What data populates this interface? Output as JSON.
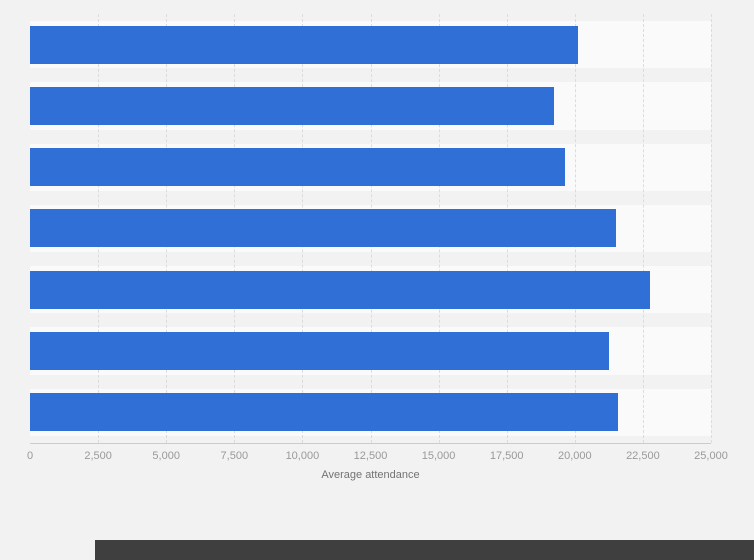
{
  "page": {
    "background": "#f2f2f2"
  },
  "chart_data": {
    "type": "bar",
    "orientation": "horizontal",
    "title": "",
    "xlabel": "Average attendance",
    "ylabel": "",
    "categories": [
      "",
      "",
      "",
      "",
      "",
      "",
      ""
    ],
    "values": [
      20100,
      19250,
      19650,
      21500,
      22750,
      21250,
      21600
    ],
    "xlim": [
      0,
      25000
    ],
    "xticks": [
      0,
      2500,
      5000,
      7500,
      10000,
      12500,
      15000,
      17500,
      20000,
      22500,
      25000
    ],
    "xtick_labels": [
      "0",
      "2,500",
      "5,000",
      "7,500",
      "10,000",
      "12,500",
      "15,000",
      "17,500",
      "20,000",
      "22,500",
      "25,000"
    ],
    "grid": "vertical-dashed",
    "legend": "none"
  },
  "colors": {
    "bar": "#2f6fd6",
    "row_band": "#fafafa",
    "background": "#f2f2f2",
    "gridline": "#dcdcdc",
    "axis_line": "#cccccc",
    "tick_text": "#999999",
    "axis_title_text": "#737373",
    "footer_bar": "#3f3f3f"
  }
}
